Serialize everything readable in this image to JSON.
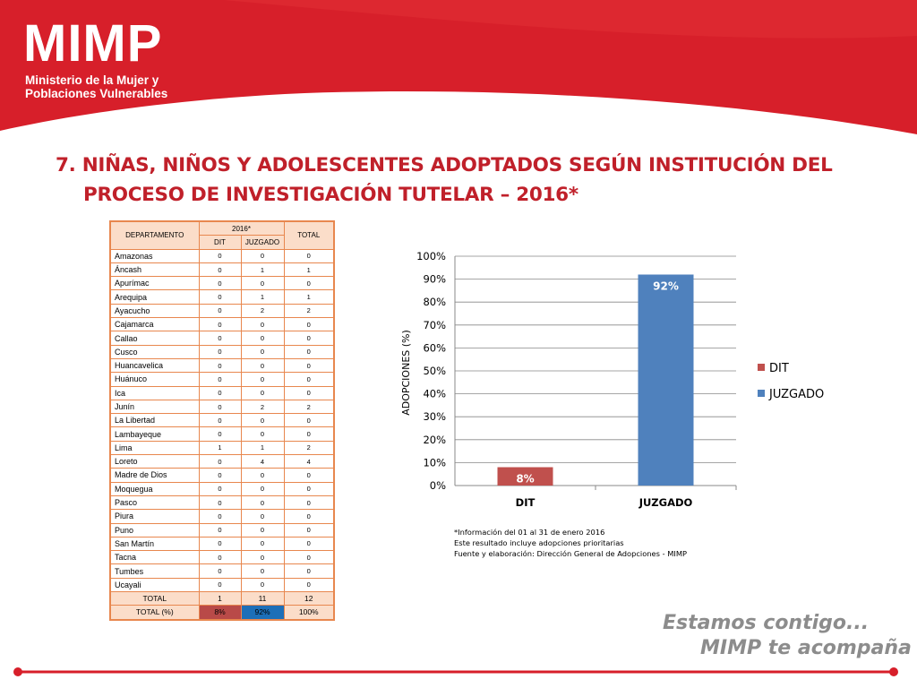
{
  "header": {
    "logo_text": "MIMP",
    "ministry_line1": "Ministerio de la Mujer y",
    "ministry_line2": "Poblaciones Vulnerables",
    "colors": {
      "primary": "#D71F2A",
      "accent": "#E53238"
    }
  },
  "title": {
    "line1": "7. NIÑAS, NIÑOS Y ADOLESCENTES ADOPTADOS SEGÚN INSTITUCIÓN DEL",
    "line2": "PROCESO DE INVESTIGACIÓN TUTELAR – 2016*"
  },
  "table": {
    "headers": {
      "departamento": "DEPARTAMENTO",
      "year": "2016*",
      "total": "TOTAL",
      "dit": "DIT",
      "juzgado": "JUZGADO"
    },
    "rows": [
      {
        "dep": "Amazonas",
        "dit": "0",
        "juz": "0",
        "total": "0"
      },
      {
        "dep": "Áncash",
        "dit": "0",
        "juz": "1",
        "total": "1"
      },
      {
        "dep": "Apurímac",
        "dit": "0",
        "juz": "0",
        "total": "0"
      },
      {
        "dep": "Arequipa",
        "dit": "0",
        "juz": "1",
        "total": "1"
      },
      {
        "dep": "Ayacucho",
        "dit": "0",
        "juz": "2",
        "total": "2"
      },
      {
        "dep": "Cajamarca",
        "dit": "0",
        "juz": "0",
        "total": "0"
      },
      {
        "dep": "Callao",
        "dit": "0",
        "juz": "0",
        "total": "0"
      },
      {
        "dep": "Cusco",
        "dit": "0",
        "juz": "0",
        "total": "0"
      },
      {
        "dep": "Huancavelica",
        "dit": "0",
        "juz": "0",
        "total": "0"
      },
      {
        "dep": "Huánuco",
        "dit": "0",
        "juz": "0",
        "total": "0"
      },
      {
        "dep": "Ica",
        "dit": "0",
        "juz": "0",
        "total": "0"
      },
      {
        "dep": "Junín",
        "dit": "0",
        "juz": "2",
        "total": "2"
      },
      {
        "dep": "La Libertad",
        "dit": "0",
        "juz": "0",
        "total": "0"
      },
      {
        "dep": "Lambayeque",
        "dit": "0",
        "juz": "0",
        "total": "0"
      },
      {
        "dep": "Lima",
        "dit": "1",
        "juz": "1",
        "total": "2"
      },
      {
        "dep": "Loreto",
        "dit": "0",
        "juz": "4",
        "total": "4"
      },
      {
        "dep": "Madre de Dios",
        "dit": "0",
        "juz": "0",
        "total": "0"
      },
      {
        "dep": "Moquegua",
        "dit": "0",
        "juz": "0",
        "total": "0"
      },
      {
        "dep": "Pasco",
        "dit": "0",
        "juz": "0",
        "total": "0"
      },
      {
        "dep": "Piura",
        "dit": "0",
        "juz": "0",
        "total": "0"
      },
      {
        "dep": "Puno",
        "dit": "0",
        "juz": "0",
        "total": "0"
      },
      {
        "dep": "San Martín",
        "dit": "0",
        "juz": "0",
        "total": "0"
      },
      {
        "dep": "Tacna",
        "dit": "0",
        "juz": "0",
        "total": "0"
      },
      {
        "dep": "Tumbes",
        "dit": "0",
        "juz": "0",
        "total": "0"
      },
      {
        "dep": "Ucayali",
        "dit": "0",
        "juz": "0",
        "total": "0"
      }
    ],
    "total_row": {
      "label": "TOTAL",
      "dit": "1",
      "juz": "11",
      "total": "12"
    },
    "pct_row": {
      "label": "TOTAL (%)",
      "dit": "8%",
      "juz": "92%",
      "total": "100%"
    },
    "colors": {
      "border": "#E8874E",
      "header_fill": "#FBDDC9",
      "dit_fill": "#B94A48",
      "juzgado_fill": "#1D6FB8"
    }
  },
  "chart_data": {
    "type": "bar",
    "categories": [
      "DIT",
      "JUZGADO"
    ],
    "values": [
      8,
      92
    ],
    "value_labels": [
      "8%",
      "92%"
    ],
    "bar_colors": [
      "#C0504D",
      "#4F81BD"
    ],
    "ylabel": "ADOPCIONES (%)",
    "xlabel": "",
    "ylim": [
      0,
      100
    ],
    "yticks": [
      "0%",
      "10%",
      "20%",
      "30%",
      "40%",
      "50%",
      "60%",
      "70%",
      "80%",
      "90%",
      "100%"
    ],
    "legend": {
      "position": "right",
      "entries": [
        {
          "name": "DIT",
          "color": "#C0504D"
        },
        {
          "name": "JUZGADO",
          "color": "#4F81BD"
        }
      ]
    },
    "grid": true
  },
  "notes": {
    "line1": "*Información del  01 al 31 de enero 2016",
    "line2": "Este resultado incluye adopciones prioritarias",
    "line3": "Fuente y elaboración: Dirección General de Adopciones - MIMP"
  },
  "slogan": {
    "line1": "Estamos contigo...",
    "line2": "MIMP te acompaña"
  }
}
